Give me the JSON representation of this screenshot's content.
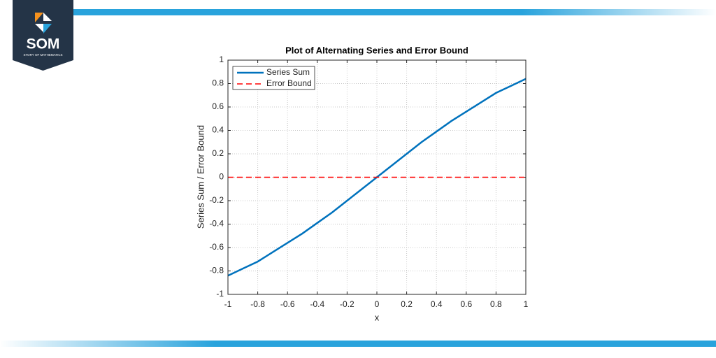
{
  "logo": {
    "text": "SOM",
    "subtitle": "STORY OF MATHEMATICS"
  },
  "chart_data": {
    "type": "line",
    "title": "Plot of Alternating Series and Error Bound",
    "xlabel": "x",
    "ylabel": "Series Sum / Error Bound",
    "x": [
      -1,
      -0.9,
      -0.8,
      -0.7,
      -0.6,
      -0.5,
      -0.4,
      -0.3,
      -0.2,
      -0.1,
      0,
      0.1,
      0.2,
      0.3,
      0.4,
      0.5,
      0.6,
      0.7,
      0.8,
      0.9,
      1
    ],
    "series": [
      {
        "name": "Series Sum",
        "color": "#0072bd",
        "style": "solid",
        "values": [
          -0.84,
          -0.78,
          -0.72,
          -0.64,
          -0.56,
          -0.48,
          -0.39,
          -0.3,
          -0.2,
          -0.1,
          0,
          0.1,
          0.2,
          0.3,
          0.39,
          0.48,
          0.56,
          0.64,
          0.72,
          0.78,
          0.84
        ]
      },
      {
        "name": "Error Bound",
        "color": "#ff0000",
        "style": "dashed",
        "values": [
          0,
          0,
          0,
          0,
          0,
          0,
          0,
          0,
          0,
          0,
          0,
          0,
          0,
          0,
          0,
          0,
          0,
          0,
          0,
          0,
          0
        ]
      }
    ],
    "xlim": [
      -1,
      1
    ],
    "xticks": [
      -1,
      -0.8,
      -0.6,
      -0.4,
      -0.2,
      0,
      0.2,
      0.4,
      0.6,
      0.8,
      1
    ],
    "ylim": [
      -1,
      1
    ],
    "yticks": [
      -1,
      -0.8,
      -0.6,
      -0.4,
      -0.2,
      0,
      0.2,
      0.4,
      0.6,
      0.8,
      1
    ],
    "grid": true,
    "legend": "top-left"
  }
}
